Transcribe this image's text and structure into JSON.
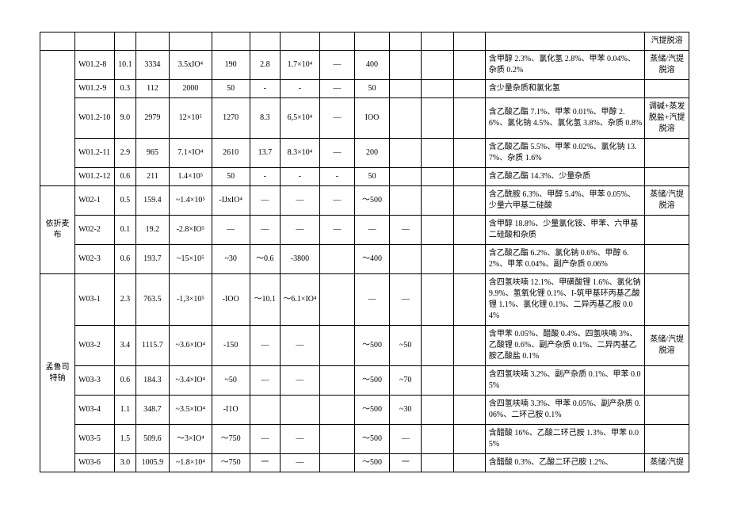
{
  "header_right": "汽提脱溶",
  "groups": [
    {
      "label": "",
      "rows": [
        {
          "id": "W01.2-8",
          "v1": "10.1",
          "v2": "3334",
          "v3": "3.5xIO⁴",
          "v4": "190",
          "v5": "2.8",
          "v6": "1.7×10⁴",
          "v7": "—",
          "v8": "400",
          "v9": "",
          "v10": "",
          "v11": "",
          "desc": "含甲醇 2.3%、氯化氢 2.8%、甲苯 0.04%、杂质 0.2%",
          "method": "蒸储/汽提脱溶"
        },
        {
          "id": "W01.2-9",
          "v1": "0.3",
          "v2": "112",
          "v3": "2000",
          "v4": "50",
          "v5": "-",
          "v6": "-",
          "v7": "—",
          "v8": "50",
          "v9": "",
          "v10": "",
          "v11": "",
          "desc": "含少量杂质和氯化氢",
          "method": ""
        },
        {
          "id": "W01.2-10",
          "v1": "9.0",
          "v2": "2979",
          "v3": "12×10⁵",
          "v4": "1270",
          "v5": "8.3",
          "v6": "6,5×10⁴",
          "v7": "—",
          "v8": "IOO",
          "v9": "",
          "v10": "",
          "v11": "",
          "desc": "含乙酸乙酯 7.1%、甲苯 0.01%、甲醇 2.6%、氯化钠 4.5%、氯化氢 3.8%、杂质 0.8%",
          "method": "调碱+蒸发脱盐+汽提脱溶"
        },
        {
          "id": "W01.2-11",
          "v1": "2.9",
          "v2": "965",
          "v3": "7.1×IO⁴",
          "v4": "2610",
          "v5": "13.7",
          "v6": "8.3×10⁴",
          "v7": "—",
          "v8": "200",
          "v9": "",
          "v10": "",
          "v11": "",
          "desc": "含乙酸乙酯 5.5%、甲苯 0.02%、氯化钠 13.7%、杂质 1.6%",
          "method": ""
        },
        {
          "id": "W01.2-12",
          "v1": "0.6",
          "v2": "211",
          "v3": "1.4×10⁵",
          "v4": "50",
          "v5": "-",
          "v6": "-",
          "v7": "-",
          "v8": "50",
          "v9": "",
          "v10": "",
          "v11": "",
          "desc": "含乙酸乙酯 14.3%、少量杂质",
          "method": ""
        }
      ]
    },
    {
      "label": "依折麦布",
      "rows": [
        {
          "id": "W02-1",
          "v1": "0.5",
          "v2": "159.4",
          "v3": "~1.4×10⁵",
          "v4": "-IJxIO⁴",
          "v5": "—",
          "v6": "—",
          "v7": "—",
          "v8": "～500",
          "v9": "",
          "v10": "",
          "v11": "",
          "desc": "含乙酰胺 6.3%、甲醇 5.4%、甲苯 0.05%、少量六甲基二硅酸",
          "method": "蒸储/汽提脱溶"
        },
        {
          "id": "W02-2",
          "v1": "0.1",
          "v2": "19.2",
          "v3": "-2.8×IO⁵",
          "v4": "—",
          "v5": "—",
          "v6": "—",
          "v7": "—",
          "v8": "—",
          "v9": "—",
          "v10": "",
          "v11": "",
          "desc": "含甲醇 18.8%、少量氯化铵、甲苯、六甲基二硅酸和杂质",
          "method": ""
        },
        {
          "id": "W02-3",
          "v1": "0.6",
          "v2": "193.7",
          "v3": "~15×10⁵",
          "v4": "~30",
          "v5": "～0.6",
          "v6": "-3800",
          "v7": "",
          "v8": "～400",
          "v9": "",
          "v10": "",
          "v11": "",
          "desc": "含乙酸乙酯 6.2%、氯化钠 0.6%、甲醇 6.2%、甲苯 0.04%、副产杂质 0.06%",
          "method": ""
        }
      ]
    },
    {
      "label": "孟鲁司特钠",
      "rows": [
        {
          "id": "W03-1",
          "v1": "2.3",
          "v2": "763.5",
          "v3": "-1,3×10⁵",
          "v4": "-IOO",
          "v5": "～10.1",
          "v6": "～6.1×IO⁴",
          "v7": "",
          "v8": "—",
          "v9": "—",
          "v10": "",
          "v11": "",
          "desc": "含四氢呋喃 12.1%、甲磺酸锂 1.6%、氯化钠 9.9%、氢氧化锂 0.1%、I-筑甲基环丙基乙酸锂 1.1%、氯化锂 0.1%、二异丙基乙胺 0.04%",
          "method": ""
        },
        {
          "id": "W03-2",
          "v1": "3.4",
          "v2": "1115.7",
          "v3": "~3.6×IO⁴",
          "v4": "-150",
          "v5": "—",
          "v6": "—",
          "v7": "",
          "v8": "～500",
          "v9": "~50",
          "v10": "",
          "v11": "",
          "desc": "含甲苯 0.05%、醋酸 0.4%、四氢呋喃 3%、乙酸锂 0.6%、副产杂质 0.1%、二异丙基乙胺乙酸盐 0.1%",
          "method": "蒸储/汽提脱溶"
        },
        {
          "id": "W03-3",
          "v1": "0.6",
          "v2": "184.3",
          "v3": "~3.4×IO⁴",
          "v4": "~50",
          "v5": "—",
          "v6": "—",
          "v7": "",
          "v8": "～500",
          "v9": "~70",
          "v10": "",
          "v11": "",
          "desc": "含四氢呋喃 3.2%、副产杂质 0.1%、甲苯 0.05%",
          "method": ""
        },
        {
          "id": "W03-4",
          "v1": "1.1",
          "v2": "348.7",
          "v3": "~3.5×IO⁴",
          "v4": "-I1O",
          "v5": "",
          "v6": "",
          "v7": "",
          "v8": "～500",
          "v9": "~30",
          "v10": "",
          "v11": "",
          "desc": "含四氢呋喃 3.3%、甲苯 0.05%、副产杂质 0.06%、二环己胺 0.1%",
          "method": ""
        },
        {
          "id": "W03-5",
          "v1": "1.5",
          "v2": "509.6",
          "v3": "～3×IO⁴",
          "v4": "～750",
          "v5": "—",
          "v6": "—",
          "v7": "",
          "v8": "～500",
          "v9": "—",
          "v10": "",
          "v11": "",
          "desc": "含醋酸 16%、乙酸二环己胺 1.3%、甲苯 0.05%",
          "method": ""
        },
        {
          "id": "W03-6",
          "v1": "3.0",
          "v2": "1005.9",
          "v3": "~1.8×10⁴",
          "v4": "～750",
          "v5": "一",
          "v6": "—",
          "v7": "",
          "v8": "～500",
          "v9": "一",
          "v10": "",
          "v11": "",
          "desc": "含醋酸 0.3%、乙酸二环己胺 1.2%、",
          "method": "蒸储/汽提"
        }
      ]
    }
  ]
}
